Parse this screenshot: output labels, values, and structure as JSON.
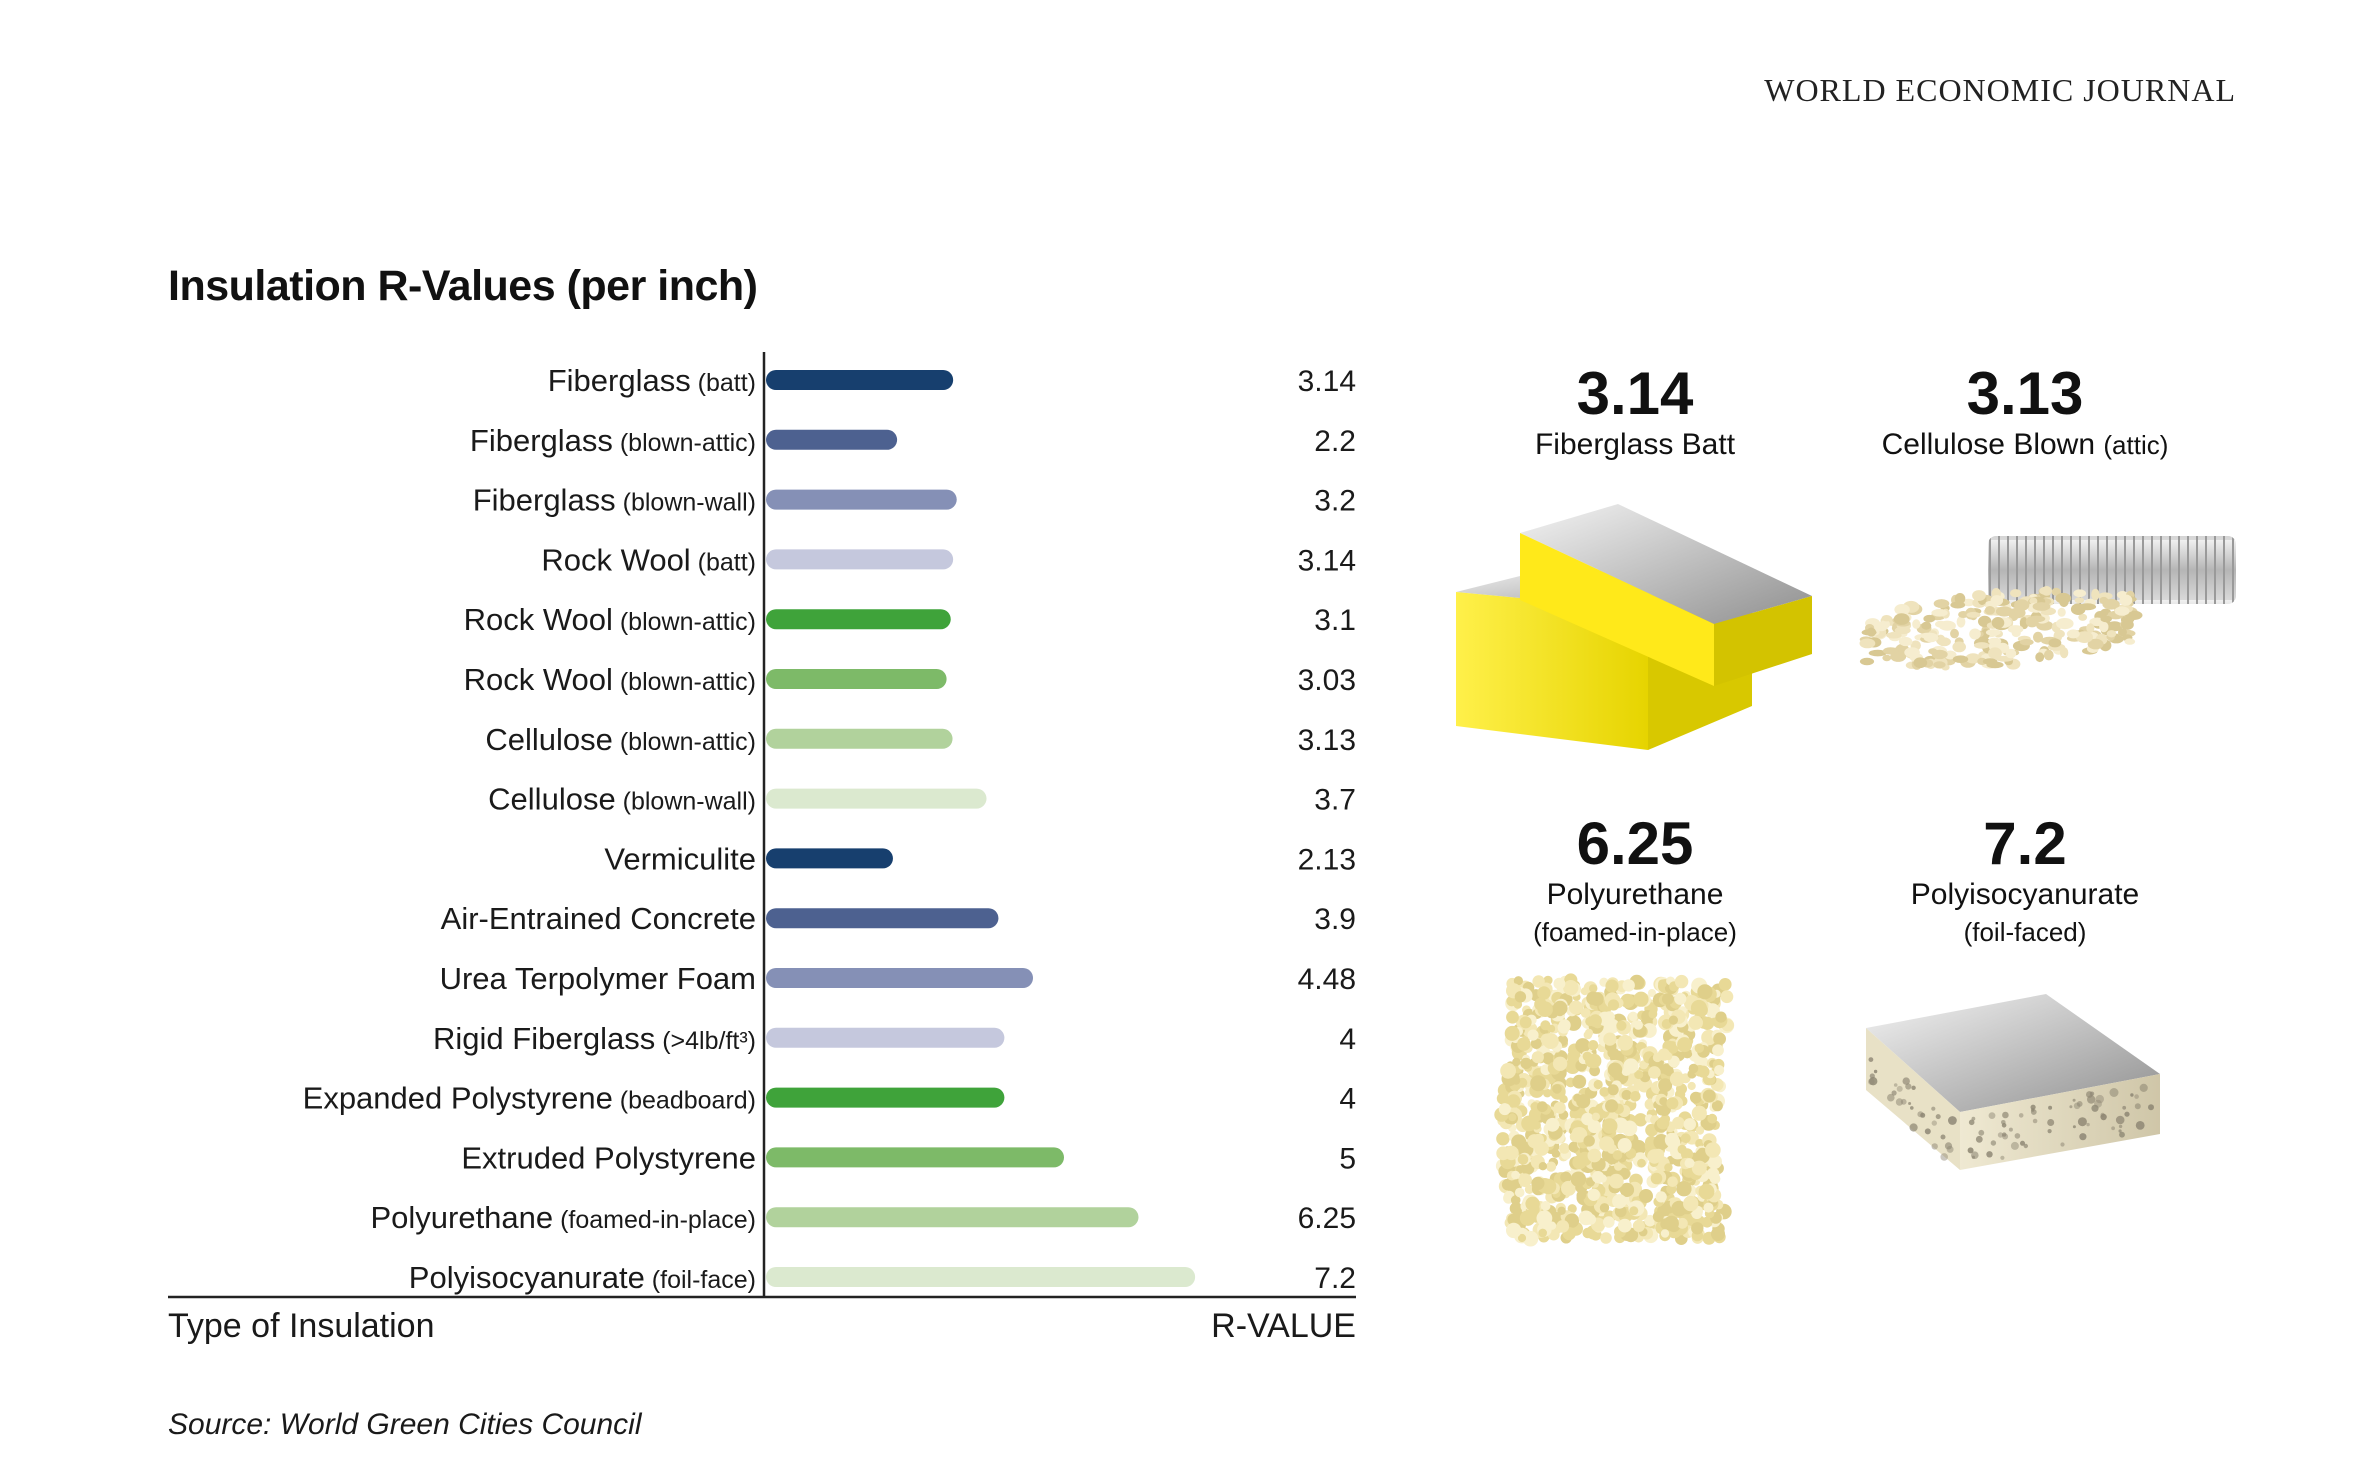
{
  "header": {
    "journal": "WORLD ECONOMIC JOURNAL"
  },
  "chart_data": {
    "type": "bar",
    "orientation": "horizontal",
    "title": "Insulation R-Values (per inch)",
    "xlabel": "R-VALUE",
    "ylabel": "Type of Insulation",
    "xlim": [
      0,
      8
    ],
    "grid": false,
    "categories": [
      {
        "name": "Fiberglass",
        "detail": "(batt)",
        "value": 3.14,
        "label": "3.14",
        "color": "#173f6e"
      },
      {
        "name": "Fiberglass",
        "detail": "(blown-attic)",
        "value": 2.2,
        "label": "2.2",
        "color": "#4d6190"
      },
      {
        "name": "Fiberglass",
        "detail": "(blown-wall)",
        "value": 3.2,
        "label": "3.2",
        "color": "#8590b6"
      },
      {
        "name": "Rock Wool",
        "detail": "(batt)",
        "value": 3.14,
        "label": "3.14",
        "color": "#c5c8dd"
      },
      {
        "name": "Rock Wool",
        "detail": "(blown-attic)",
        "value": 3.1,
        "label": "3.1",
        "color": "#3fa33a"
      },
      {
        "name": "Rock Wool",
        "detail": "(blown-attic)",
        "value": 3.03,
        "label": "3.03",
        "color": "#7dba68"
      },
      {
        "name": "Cellulose",
        "detail": "(blown-attic)",
        "value": 3.13,
        "label": "3.13",
        "color": "#b1d29c"
      },
      {
        "name": "Cellulose",
        "detail": "(blown-wall)",
        "value": 3.7,
        "label": "3.7",
        "color": "#dbe9cf"
      },
      {
        "name": "Vermiculite",
        "detail": "",
        "value": 2.13,
        "label": "2.13",
        "color": "#173f6e"
      },
      {
        "name": "Air-Entrained Concrete",
        "detail": "",
        "value": 3.9,
        "label": "3.9",
        "color": "#4d6190"
      },
      {
        "name": "Urea Terpolymer Foam",
        "detail": "",
        "value": 4.48,
        "label": "4.48",
        "color": "#8590b6"
      },
      {
        "name": "Rigid Fiberglass",
        "detail": "(>4lb/ft³)",
        "value": 4,
        "label": "4",
        "color": "#c5c8dd"
      },
      {
        "name": "Expanded Polystyrene",
        "detail": "(beadboard)",
        "value": 4,
        "label": "4",
        "color": "#3fa33a"
      },
      {
        "name": "Extruded Polystyrene",
        "detail": "",
        "value": 5,
        "label": "5",
        "color": "#7dba68"
      },
      {
        "name": "Polyurethane",
        "detail": "(foamed-in-place)",
        "value": 6.25,
        "label": "6.25",
        "color": "#b1d29c"
      },
      {
        "name": "Polyisocyanurate",
        "detail": "(foil-face)",
        "value": 7.2,
        "label": "7.2",
        "color": "#dbe9cf"
      }
    ]
  },
  "highlights": [
    {
      "value": "3.14",
      "name": "Fiberglass Batt",
      "detail": ""
    },
    {
      "value": "3.13",
      "name": "Cellulose Blown",
      "detail": "(attic)"
    },
    {
      "value": "6.25",
      "name": "Polyurethane",
      "detail": "(foamed-in-place)"
    },
    {
      "value": "7.2",
      "name": "Polyisocyanurate",
      "detail": "(foil-faced)"
    }
  ],
  "source": "Source: World Green Cities Council"
}
